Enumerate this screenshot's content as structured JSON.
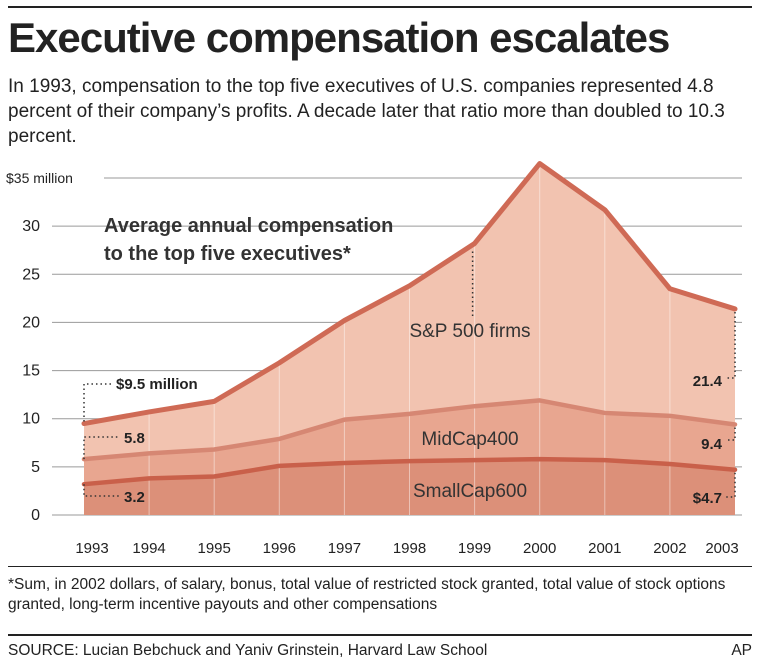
{
  "header": {
    "title": "Executive compensation escalates",
    "subtitle": "In 1993, compensation to the top five executives of U.S. companies represented 4.8 percent of their company’s profits. A decade later that ratio more than doubled to 10.3 percent."
  },
  "chart_data": {
    "type": "area",
    "title": "Average annual compensation to the top five executives*",
    "title_lines": [
      "Average annual compensation",
      "to the top five executives*"
    ],
    "x": [
      1993,
      1994,
      1995,
      1996,
      1997,
      1998,
      1999,
      2000,
      2001,
      2002,
      2003
    ],
    "x_tick_labels": [
      "1993",
      "1994",
      "1995",
      "1996",
      "1997",
      "1998",
      "1999",
      "2000",
      "2001",
      "2002",
      "2003"
    ],
    "ylim": [
      0,
      35
    ],
    "y_ticks": [
      0,
      5,
      10,
      15,
      20,
      25,
      30,
      35
    ],
    "y_tick_labels": [
      "0",
      "5",
      "10",
      "15",
      "20",
      "25",
      "30",
      "$35 million"
    ],
    "grid": true,
    "series": [
      {
        "name": "S&P 500 firms",
        "values": [
          9.5,
          10.7,
          11.8,
          15.8,
          20.2,
          23.8,
          28.2,
          36.5,
          31.7,
          23.5,
          21.4
        ],
        "fill": "#f2c3b0",
        "line": "#cf6a55"
      },
      {
        "name": "MidCap400",
        "values": [
          5.8,
          6.4,
          6.8,
          7.9,
          9.9,
          10.5,
          11.3,
          11.9,
          10.6,
          10.3,
          9.4
        ],
        "fill": "#e8a690",
        "line": "#d68773"
      },
      {
        "name": "SmallCap600",
        "values": [
          3.2,
          3.8,
          4.0,
          5.1,
          5.4,
          5.6,
          5.7,
          5.8,
          5.7,
          5.3,
          4.7
        ],
        "fill": "#dc9079",
        "line": "#c9604a"
      }
    ],
    "annotations": {
      "sp_start": "$9.5 million",
      "mid_start": "5.8",
      "small_start": "3.2",
      "sp_end": "21.4",
      "mid_end": "9.4",
      "small_end": "$4.7"
    }
  },
  "footer": {
    "footnote": "*Sum, in 2002 dollars, of salary, bonus, total value of restricted stock granted, total value of stock options granted, long-term incentive payouts and other compensations",
    "source": "SOURCE: Lucian Bebchuck and Yaniv Grinstein, Harvard Law School",
    "credit": "AP"
  }
}
